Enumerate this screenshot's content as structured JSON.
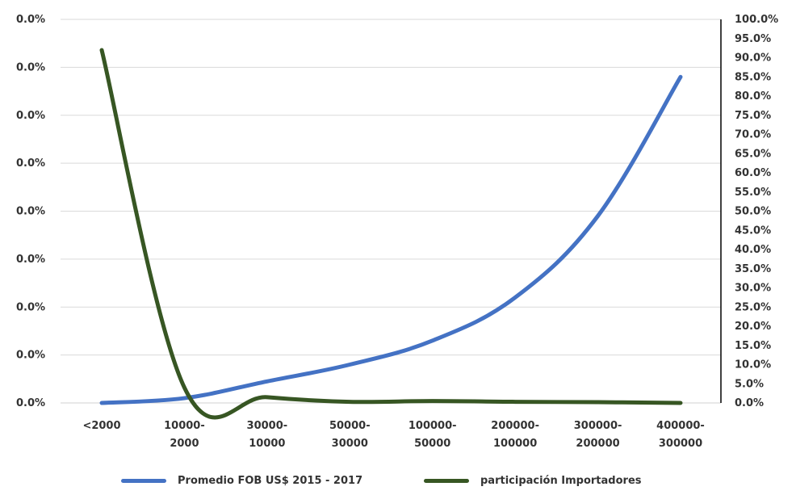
{
  "chart_data": {
    "type": "line",
    "categories": [
      "<2000",
      "10000-\n2000",
      "30000-\n10000",
      "50000-\n30000",
      "100000-\n50000",
      "200000-\n100000",
      "300000-\n200000",
      "400000-\n300000"
    ],
    "left_axis": {
      "ticks": [
        "0.0%",
        "0.0%",
        "0.0%",
        "0.0%",
        "0.0%",
        "0.0%",
        "0.0%",
        "0.0%",
        "0.0%"
      ],
      "ylim": [
        0,
        8
      ]
    },
    "right_axis": {
      "ticks": [
        "0.0%",
        "5.0%",
        "10.0%",
        "15.0%",
        "20.0%",
        "25.0%",
        "30.0%",
        "35.0%",
        "40.0%",
        "45.0%",
        "50.0%",
        "55.0%",
        "60.0%",
        "65.0%",
        "70.0%",
        "75.0%",
        "80.0%",
        "85.0%",
        "90.0%",
        "95.0%",
        "100.0%"
      ],
      "ylim": [
        0,
        100
      ]
    },
    "series": [
      {
        "name": "Promedio FOB US$ 2015 - 2017",
        "axis": "left",
        "color": "#4472C4",
        "values": [
          0.0,
          0.1,
          0.45,
          0.8,
          1.3,
          2.2,
          3.9,
          6.8
        ]
      },
      {
        "name": "participación Importadores",
        "axis": "right",
        "color": "#375623",
        "values": [
          92,
          4.0,
          1.5,
          0.3,
          0.5,
          0.3,
          0.2,
          0.0
        ]
      }
    ],
    "grid": true,
    "legend_position": "bottom"
  }
}
